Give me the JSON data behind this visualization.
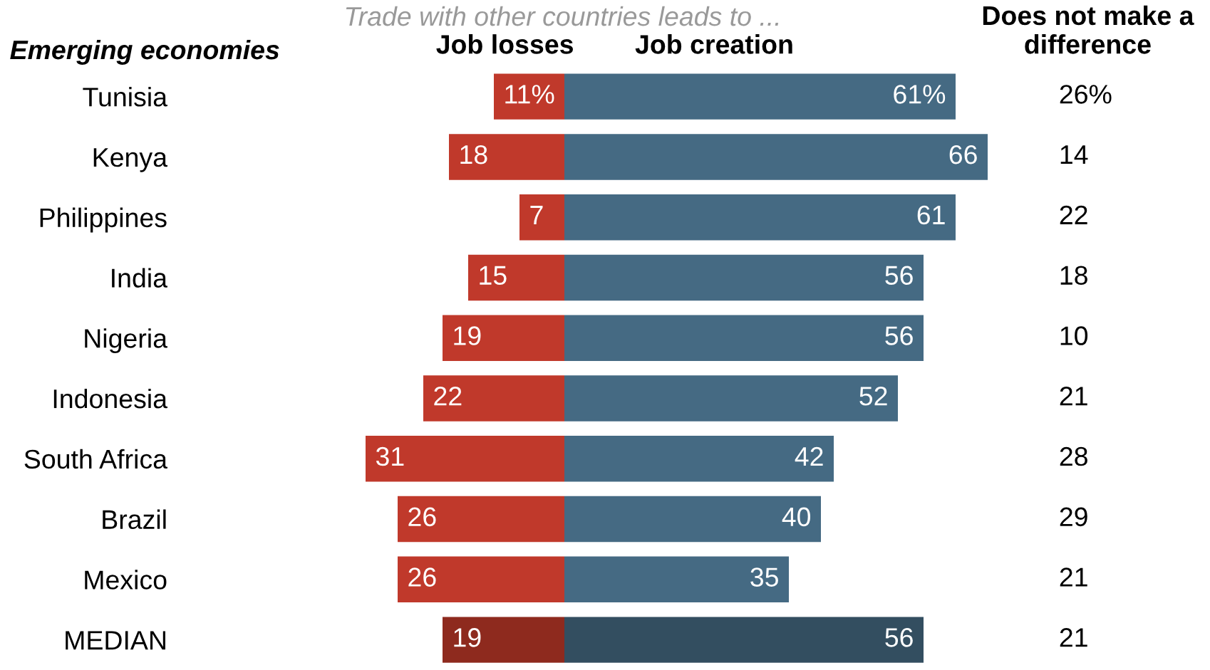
{
  "chart_data": [
    {
      "type": "bar",
      "orientation": "horizontal",
      "title": "Job losses",
      "ylabel": "Emerging economies",
      "annotations": [
        "Trade with other countries leads to ..."
      ],
      "categories": [
        "Tunisia",
        "Kenya",
        "Philippines",
        "India",
        "Nigeria",
        "Indonesia",
        "South Africa",
        "Brazil",
        "Mexico",
        "MEDIAN"
      ],
      "xlim": [
        31,
        0
      ],
      "tick_labels": "y",
      "series": [
        {
          "colors": [
            "#c0392b",
            "#c0392b",
            "#c0392b",
            "#c0392b",
            "#c0392b",
            "#c0392b",
            "#c0392b",
            "#c0392b",
            "#c0392b",
            "#8e2a1e"
          ],
          "values": [
            11,
            18,
            7,
            15,
            19,
            22,
            31,
            26,
            26,
            19
          ],
          "value_labels": [
            "11%",
            "18",
            "7",
            "15",
            "19",
            "22",
            "31",
            "26",
            "26",
            "19"
          ]
        }
      ]
    },
    {
      "type": "bar",
      "orientation": "horizontal",
      "title": "Job creation",
      "xlim": [
        0,
        66
      ],
      "tick_labels": false,
      "series": [
        {
          "colors": [
            "#456a83",
            "#456a83",
            "#456a83",
            "#456a83",
            "#456a83",
            "#456a83",
            "#456a83",
            "#456a83",
            "#456a83",
            "#334e60"
          ],
          "values": [
            61,
            66,
            61,
            56,
            56,
            52,
            42,
            40,
            35,
            56
          ],
          "value_labels": [
            "61%",
            "66",
            "61",
            "56",
            "56",
            "52",
            "42",
            "40",
            "35",
            "56"
          ]
        }
      ]
    },
    {
      "type": "other",
      "title": "Does not make a difference",
      "annotations": [
        "26%",
        "14",
        "22",
        "18",
        "10",
        "21",
        "28",
        "29",
        "21",
        "21"
      ]
    }
  ]
}
